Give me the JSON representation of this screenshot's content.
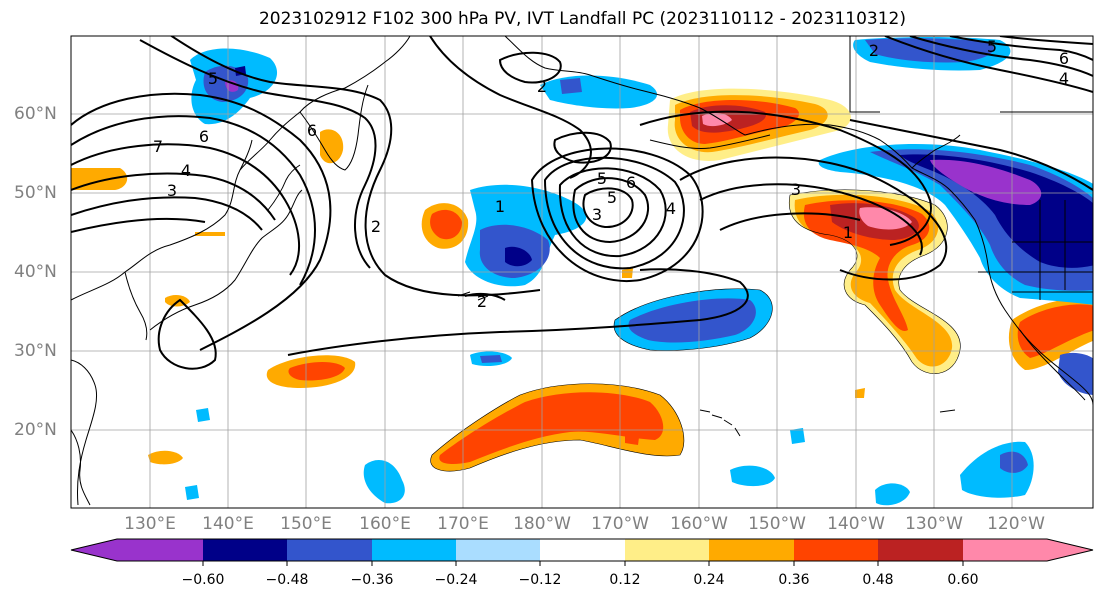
{
  "title": "2023102912 F102 300 hPa PV, IVT Landfall PC (2023110112 - 2023110312)",
  "lat_labels": [
    "60°N",
    "50°N",
    "40°N",
    "30°N",
    "20°N"
  ],
  "lon_labels": [
    "130°E",
    "140°E",
    "150°E",
    "160°E",
    "170°E",
    "180°W",
    "170°W",
    "160°W",
    "150°W",
    "140°W",
    "130°W",
    "120°W"
  ],
  "colorbar": {
    "colors": [
      "#9933cc",
      "#000088",
      "#3355cc",
      "#00bbff",
      "#aaddff",
      "#ffffff",
      "#ffee88",
      "#ffaa00",
      "#ff4400",
      "#bb2222",
      "#ff88aa"
    ],
    "tick_labels": [
      "−0.60",
      "−0.48",
      "−0.36",
      "−0.24",
      "−0.12",
      "0.12",
      "0.24",
      "0.36",
      "0.48",
      "0.60"
    ]
  },
  "contour_labels": [
    "7",
    "6",
    "5",
    "4",
    "3",
    "2",
    "6",
    "5",
    "3",
    "6",
    "5",
    "4",
    "3",
    "1",
    "2",
    "1",
    "2",
    "2",
    "5",
    "6",
    "4"
  ]
}
